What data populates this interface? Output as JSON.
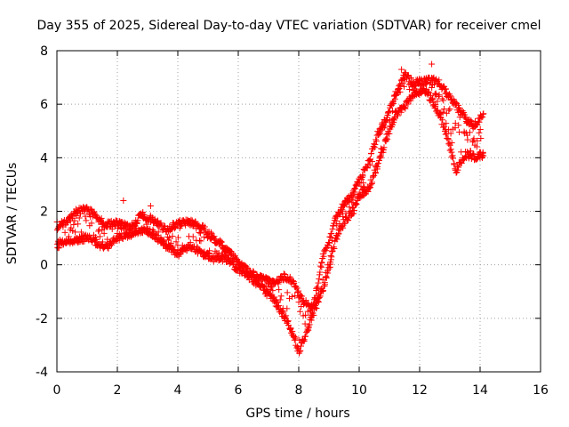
{
  "chart_data": {
    "type": "scatter",
    "title": "Day 355 of 2025, Sidereal Day-to-day VTEC variation (SDTVAR) for receiver cmel",
    "xlabel": "GPS time / hours",
    "ylabel": "SDTVAR / TECUs",
    "xlim": [
      0,
      16
    ],
    "ylim": [
      -4,
      8
    ],
    "xticks": [
      0,
      2,
      4,
      6,
      8,
      10,
      12,
      14,
      16
    ],
    "yticks": [
      -4,
      -2,
      0,
      2,
      4,
      6,
      8
    ],
    "grid": true,
    "marker": "+",
    "color": "#ff0000",
    "series": [
      {
        "band_lower": [
          [
            0.0,
            0.6
          ],
          [
            0.3,
            0.7
          ],
          [
            0.6,
            0.8
          ],
          [
            1.0,
            0.9
          ],
          [
            1.3,
            0.7
          ],
          [
            1.6,
            0.5
          ],
          [
            2.0,
            0.9
          ],
          [
            2.4,
            1.0
          ],
          [
            2.8,
            1.2
          ],
          [
            3.2,
            1.0
          ],
          [
            3.6,
            0.6
          ],
          [
            4.0,
            0.3
          ],
          [
            4.4,
            0.6
          ],
          [
            4.8,
            0.3
          ],
          [
            5.2,
            0.1
          ],
          [
            5.6,
            0.1
          ],
          [
            6.0,
            -0.3
          ],
          [
            6.4,
            -0.6
          ],
          [
            6.8,
            -1.0
          ],
          [
            7.2,
            -1.5
          ],
          [
            7.5,
            -2.0
          ],
          [
            7.8,
            -2.7
          ],
          [
            8.0,
            -3.4
          ],
          [
            8.2,
            -2.8
          ],
          [
            8.4,
            -2.1
          ],
          [
            8.6,
            -1.6
          ],
          [
            8.8,
            -1.0
          ],
          [
            9.0,
            -0.2
          ],
          [
            9.2,
            0.8
          ],
          [
            9.5,
            1.5
          ],
          [
            9.8,
            1.9
          ],
          [
            10.0,
            2.5
          ],
          [
            10.3,
            2.7
          ],
          [
            10.6,
            3.6
          ],
          [
            10.9,
            4.6
          ],
          [
            11.2,
            5.5
          ],
          [
            11.5,
            5.8
          ],
          [
            11.8,
            6.3
          ],
          [
            12.2,
            6.4
          ],
          [
            12.6,
            5.6
          ],
          [
            12.9,
            4.7
          ],
          [
            13.2,
            3.4
          ],
          [
            13.5,
            4.0
          ],
          [
            13.8,
            3.9
          ],
          [
            14.1,
            4.0
          ]
        ],
        "band_upper": [
          [
            0.0,
            1.6
          ],
          [
            0.3,
            1.7
          ],
          [
            0.6,
            2.1
          ],
          [
            1.0,
            2.2
          ],
          [
            1.3,
            1.9
          ],
          [
            1.6,
            1.6
          ],
          [
            2.0,
            1.7
          ],
          [
            2.4,
            1.5
          ],
          [
            2.8,
            2.0
          ],
          [
            3.2,
            1.8
          ],
          [
            3.6,
            1.4
          ],
          [
            4.0,
            1.7
          ],
          [
            4.4,
            1.7
          ],
          [
            4.8,
            1.5
          ],
          [
            5.2,
            1.1
          ],
          [
            5.6,
            0.7
          ],
          [
            6.0,
            0.2
          ],
          [
            6.4,
            -0.2
          ],
          [
            6.8,
            -0.4
          ],
          [
            7.2,
            -0.6
          ],
          [
            7.5,
            -0.3
          ],
          [
            7.8,
            -0.5
          ],
          [
            8.0,
            -1.0
          ],
          [
            8.2,
            -1.3
          ],
          [
            8.4,
            -1.5
          ],
          [
            8.6,
            -0.8
          ],
          [
            8.8,
            0.5
          ],
          [
            9.0,
            1.0
          ],
          [
            9.2,
            1.8
          ],
          [
            9.5,
            2.4
          ],
          [
            9.8,
            2.8
          ],
          [
            10.0,
            3.3
          ],
          [
            10.3,
            3.9
          ],
          [
            10.6,
            5.0
          ],
          [
            10.9,
            5.6
          ],
          [
            11.2,
            6.5
          ],
          [
            11.5,
            7.2
          ],
          [
            11.8,
            6.9
          ],
          [
            12.2,
            7.0
          ],
          [
            12.6,
            7.0
          ],
          [
            12.9,
            6.5
          ],
          [
            13.2,
            6.1
          ],
          [
            13.5,
            5.6
          ],
          [
            13.8,
            5.3
          ],
          [
            14.1,
            5.8
          ]
        ],
        "outliers": [
          [
            2.2,
            2.4
          ],
          [
            3.1,
            2.2
          ],
          [
            11.4,
            7.3
          ],
          [
            12.4,
            7.5
          ]
        ]
      }
    ]
  }
}
